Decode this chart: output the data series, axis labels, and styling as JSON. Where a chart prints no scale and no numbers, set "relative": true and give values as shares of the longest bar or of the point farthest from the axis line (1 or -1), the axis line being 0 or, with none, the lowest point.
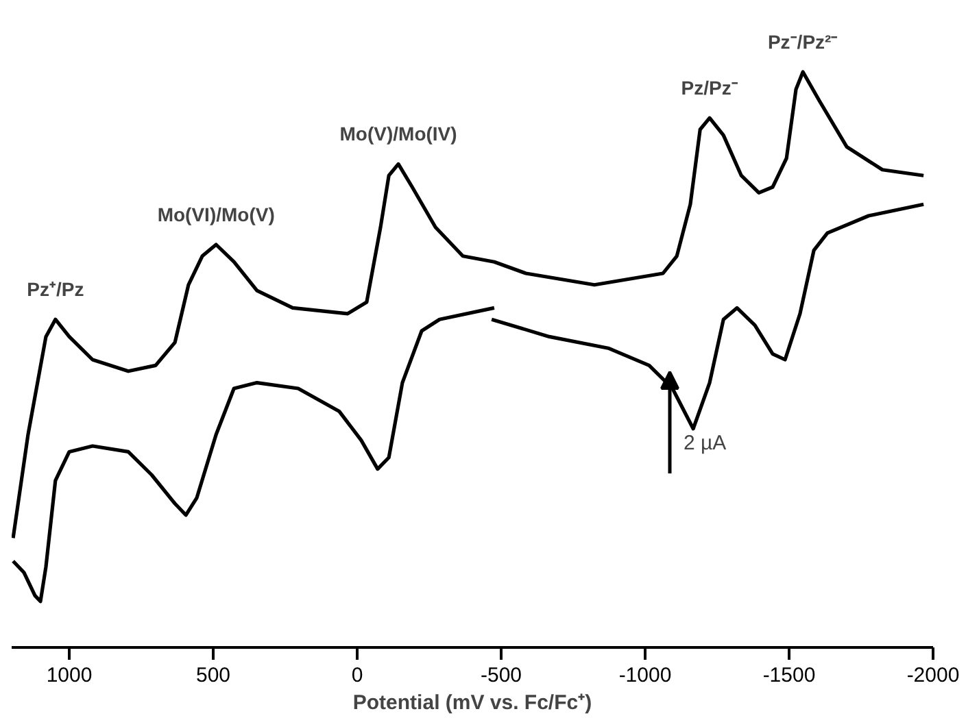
{
  "chart_data": {
    "type": "line",
    "relative": true,
    "xlabel": "Potential (mV vs. Fc/Fc⁺)",
    "xlim": [
      1200,
      -2000
    ],
    "xticks": [
      1000,
      500,
      0,
      -500,
      -1000,
      -1500,
      -2000
    ],
    "grid": false,
    "marker": "none",
    "line_style": "solid",
    "series": [
      {
        "color": "#000000",
        "x": [
          1195,
          1143,
          1081,
          1048,
          1000,
          919,
          795,
          700,
          633,
          586,
          538,
          490,
          428,
          348,
          224,
          33,
          -33,
          -81,
          -110,
          -143,
          -191,
          -272,
          -367,
          -476,
          -586,
          -824,
          -1062,
          -1110,
          -1157,
          -1191,
          -1224,
          -1272,
          -1334,
          -1395,
          -1443,
          -1491,
          -1524,
          -1548,
          -1605,
          -1700,
          -1824,
          -1967
        ],
        "values": [
          0.19,
          0.37,
          0.54,
          0.57,
          0.54,
          0.5,
          0.48,
          0.49,
          0.53,
          0.63,
          0.68,
          0.7,
          0.67,
          0.62,
          0.59,
          0.58,
          0.6,
          0.73,
          0.82,
          0.84,
          0.8,
          0.73,
          0.68,
          0.67,
          0.65,
          0.63,
          0.65,
          0.68,
          0.77,
          0.9,
          0.92,
          0.89,
          0.82,
          0.79,
          0.8,
          0.85,
          0.97,
          1.0,
          0.95,
          0.87,
          0.83,
          0.82
        ]
      },
      {
        "color": "#000000",
        "x": [
          1195,
          1157,
          1119,
          1100,
          1081,
          1048,
          1000,
          919,
          795,
          714,
          633,
          595,
          557,
          490,
          428,
          348,
          205,
          62,
          -14,
          -71,
          -110,
          -157,
          -224,
          -286,
          -476
        ],
        "values": [
          0.15,
          0.13,
          0.09,
          0.08,
          0.14,
          0.29,
          0.34,
          0.35,
          0.34,
          0.3,
          0.25,
          0.23,
          0.26,
          0.37,
          0.45,
          0.46,
          0.45,
          0.41,
          0.36,
          0.31,
          0.33,
          0.46,
          0.55,
          0.57,
          0.59
        ]
      },
      {
        "color": "#000000",
        "x": [
          -467,
          -667,
          -872,
          -1014,
          -1095,
          -1167,
          -1224,
          -1272,
          -1319,
          -1381,
          -1443,
          -1486,
          -1538,
          -1586,
          -1633,
          -1776,
          -1967
        ],
        "values": [
          0.57,
          0.54,
          0.52,
          0.49,
          0.45,
          0.38,
          0.46,
          0.57,
          0.59,
          0.56,
          0.51,
          0.5,
          0.58,
          0.69,
          0.72,
          0.75,
          0.77
        ]
      }
    ],
    "annotations": [
      "Pz⁺/Pz",
      "Mo(VI)/Mo(V)",
      "Mo(V)/Mo(IV)",
      "Pz/Pz⁻",
      "Pz⁻/Pz²⁻",
      "2 µA"
    ]
  }
}
